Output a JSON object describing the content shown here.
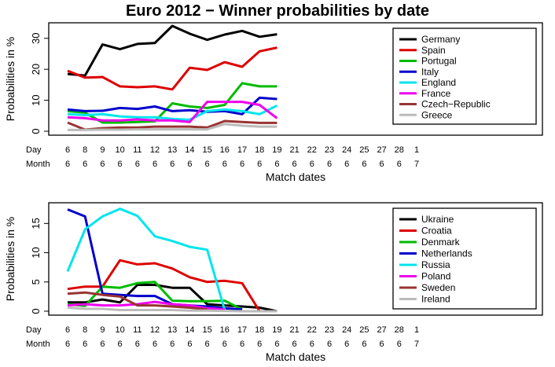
{
  "title": "Euro 2012 − Winner probabilities by date",
  "row_labels": {
    "day": "Day",
    "month": "Month"
  },
  "chart_data": [
    {
      "type": "line",
      "xlabel": "Match dates",
      "ylabel": "Probabilities in %",
      "ylim": [
        0,
        34
      ],
      "yticks": [
        0,
        10,
        20,
        30
      ],
      "legend_position": "top-right",
      "x_dates": [
        {
          "day": "6",
          "month": "6"
        },
        {
          "day": "8",
          "month": "6"
        },
        {
          "day": "9",
          "month": "6"
        },
        {
          "day": "10",
          "month": "6"
        },
        {
          "day": "11",
          "month": "6"
        },
        {
          "day": "12",
          "month": "6"
        },
        {
          "day": "13",
          "month": "6"
        },
        {
          "day": "14",
          "month": "6"
        },
        {
          "day": "15",
          "month": "6"
        },
        {
          "day": "16",
          "month": "6"
        },
        {
          "day": "17",
          "month": "6"
        },
        {
          "day": "18",
          "month": "6"
        },
        {
          "day": "19",
          "month": "6"
        },
        {
          "day": "21",
          "month": "6"
        },
        {
          "day": "22",
          "month": "6"
        },
        {
          "day": "23",
          "month": "6"
        },
        {
          "day": "24",
          "month": "6"
        },
        {
          "day": "25",
          "month": "6"
        },
        {
          "day": "27",
          "month": "6"
        },
        {
          "day": "28",
          "month": "6"
        },
        {
          "day": "1",
          "month": "7"
        }
      ],
      "series": [
        {
          "name": "Germany",
          "color": "#000000",
          "values": [
            18.5,
            18.0,
            28.0,
            26.5,
            28.2,
            28.5,
            34.0,
            31.5,
            29.5,
            31.2,
            32.4,
            30.5,
            31.3
          ]
        },
        {
          "name": "Spain",
          "color": "#dd0000",
          "values": [
            19.5,
            17.3,
            17.5,
            14.5,
            14.2,
            14.5,
            13.5,
            20.5,
            19.8,
            22.3,
            20.8,
            25.8,
            27.0
          ]
        },
        {
          "name": "Portugal",
          "color": "#00bb00",
          "values": [
            6.5,
            6.0,
            2.8,
            2.8,
            3.0,
            3.2,
            9.0,
            8.0,
            7.5,
            8.5,
            15.5,
            14.5,
            14.5
          ]
        },
        {
          "name": "Italy",
          "color": "#0000cc",
          "values": [
            7.0,
            6.5,
            6.6,
            7.5,
            7.2,
            8.0,
            6.5,
            6.8,
            6.3,
            6.5,
            5.5,
            10.8,
            10.4
          ]
        },
        {
          "name": "England",
          "color": "#00e5ee",
          "values": [
            5.5,
            5.2,
            5.5,
            4.8,
            4.5,
            4.5,
            4.0,
            3.7,
            6.5,
            7.0,
            6.5,
            5.5,
            8.3
          ]
        },
        {
          "name": "France",
          "color": "#ee00ee",
          "values": [
            4.5,
            4.2,
            3.5,
            3.5,
            3.8,
            3.5,
            3.5,
            3.0,
            9.5,
            9.5,
            9.5,
            8.5,
            4.2
          ]
        },
        {
          "name": "Czech−Republic",
          "color": "#993333",
          "values": [
            2.8,
            0.5,
            1.0,
            1.2,
            1.2,
            1.5,
            1.5,
            1.5,
            1.2,
            3.3,
            3.0,
            2.7,
            2.7
          ]
        },
        {
          "name": "Greece",
          "color": "#bbbbbb",
          "values": [
            0.4,
            0.4,
            0.5,
            0.5,
            0.6,
            0.6,
            0.6,
            0.6,
            0.6,
            2.3,
            1.8,
            1.5,
            1.5
          ]
        }
      ]
    },
    {
      "type": "line",
      "xlabel": "Match dates",
      "ylabel": "Probabilities in %",
      "ylim": [
        0,
        18
      ],
      "yticks": [
        0,
        5,
        10,
        15
      ],
      "legend_position": "top-right",
      "x_dates": [
        {
          "day": "6",
          "month": "6"
        },
        {
          "day": "8",
          "month": "6"
        },
        {
          "day": "9",
          "month": "6"
        },
        {
          "day": "10",
          "month": "6"
        },
        {
          "day": "11",
          "month": "6"
        },
        {
          "day": "12",
          "month": "6"
        },
        {
          "day": "13",
          "month": "6"
        },
        {
          "day": "14",
          "month": "6"
        },
        {
          "day": "15",
          "month": "6"
        },
        {
          "day": "16",
          "month": "6"
        },
        {
          "day": "17",
          "month": "6"
        },
        {
          "day": "18",
          "month": "6"
        },
        {
          "day": "19",
          "month": "6"
        },
        {
          "day": "21",
          "month": "6"
        },
        {
          "day": "22",
          "month": "6"
        },
        {
          "day": "23",
          "month": "6"
        },
        {
          "day": "24",
          "month": "6"
        },
        {
          "day": "25",
          "month": "6"
        },
        {
          "day": "27",
          "month": "6"
        },
        {
          "day": "28",
          "month": "6"
        },
        {
          "day": "1",
          "month": "7"
        }
      ],
      "series": [
        {
          "name": "Ukraine",
          "color": "#000000",
          "values": [
            1.5,
            1.5,
            2.0,
            1.5,
            4.5,
            4.5,
            4.0,
            4.0,
            1.2,
            1.0,
            0.8,
            0.6,
            0.0
          ]
        },
        {
          "name": "Croatia",
          "color": "#dd0000",
          "values": [
            3.8,
            4.2,
            4.2,
            8.7,
            8.0,
            8.2,
            7.3,
            5.8,
            5.0,
            5.2,
            4.8,
            0.0,
            null
          ]
        },
        {
          "name": "Denmark",
          "color": "#00bb00",
          "values": [
            1.2,
            0.9,
            4.2,
            4.0,
            4.8,
            5.0,
            1.8,
            1.7,
            1.7,
            1.8,
            0.3,
            null,
            null
          ]
        },
        {
          "name": "Netherlands",
          "color": "#0000cc",
          "values": [
            17.4,
            16.2,
            3.0,
            2.8,
            2.6,
            2.6,
            1.2,
            1.0,
            0.8,
            0.5,
            0.3,
            null,
            null
          ]
        },
        {
          "name": "Russia",
          "color": "#00e5ee",
          "values": [
            6.8,
            14.0,
            16.2,
            17.5,
            16.3,
            12.8,
            12.0,
            11.0,
            10.5,
            0.2,
            null,
            null,
            null
          ]
        },
        {
          "name": "Poland",
          "color": "#ee00ee",
          "values": [
            1.0,
            1.2,
            1.0,
            1.0,
            1.2,
            1.6,
            1.2,
            1.0,
            0.5,
            0.3,
            null,
            null,
            null
          ]
        },
        {
          "name": "Sweden",
          "color": "#993333",
          "values": [
            3.0,
            3.2,
            2.8,
            2.5,
            1.0,
            1.0,
            0.8,
            0.6,
            0.3,
            null,
            null,
            null,
            null
          ]
        },
        {
          "name": "Ireland",
          "color": "#bbbbbb",
          "values": [
            0.6,
            0.4,
            0.4,
            0.2,
            0.2,
            0.2,
            0.2,
            0.1,
            0.1,
            0.05,
            0.0,
            0.0,
            0.0
          ]
        }
      ]
    }
  ]
}
